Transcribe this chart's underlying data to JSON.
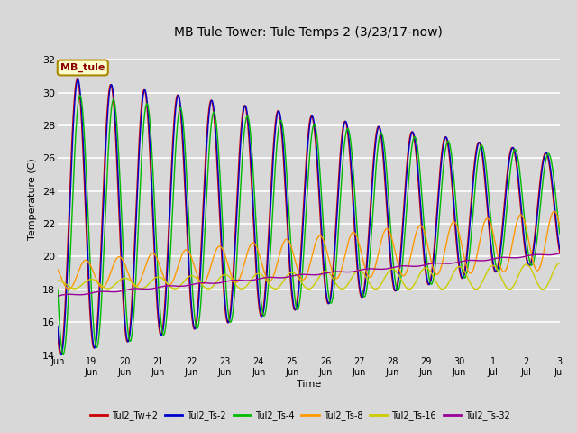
{
  "title": "MB Tule Tower: Tule Temps 2 (3/23/17-now)",
  "xlabel": "Time",
  "ylabel": "Temperature (C)",
  "ylim": [
    14,
    33
  ],
  "yticks": [
    14,
    16,
    18,
    20,
    22,
    24,
    26,
    28,
    30,
    32
  ],
  "background_color": "#d8d8d8",
  "plot_bg_color": "#d8d8d8",
  "grid_color": "white",
  "series": [
    {
      "label": "Tul2_Tw+2",
      "color": "#cc0000"
    },
    {
      "label": "Tul2_Ts-2",
      "color": "#0000cc"
    },
    {
      "label": "Tul2_Ts-4",
      "color": "#00bb00"
    },
    {
      "label": "Tul2_Ts-8",
      "color": "#ff9900"
    },
    {
      "label": "Tul2_Ts-16",
      "color": "#cccc00"
    },
    {
      "label": "Tul2_Ts-32",
      "color": "#990099"
    }
  ],
  "annotation_text": "MB_tule",
  "annotation_color": "#880000",
  "annotation_bg": "#ffffcc",
  "annotation_border": "#aa8800",
  "figwidth": 6.4,
  "figheight": 4.8,
  "dpi": 100
}
